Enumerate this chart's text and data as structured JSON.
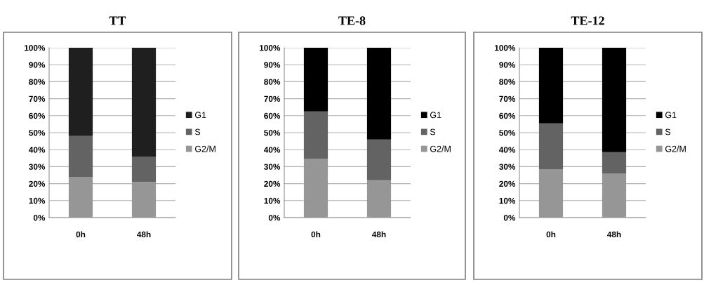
{
  "chart_data": [
    {
      "type": "bar",
      "title": "TT",
      "stacked": true,
      "categories": [
        "0h",
        "48h"
      ],
      "legend": "right",
      "grid": "y",
      "ylim": [
        0,
        100
      ],
      "yticks": [
        {
          "value": 0,
          "label": "0%"
        },
        {
          "value": 10,
          "label": "10%"
        },
        {
          "value": 20,
          "label": "20%"
        },
        {
          "value": 30,
          "label": "30%"
        },
        {
          "value": 40,
          "label": "40%"
        },
        {
          "value": 50,
          "label": "50%"
        },
        {
          "value": 60,
          "label": "60%"
        },
        {
          "value": 70,
          "label": "70%"
        },
        {
          "value": 80,
          "label": "80%"
        },
        {
          "value": 90,
          "label": "90%"
        },
        {
          "value": 100,
          "label": "100%"
        }
      ],
      "series": [
        {
          "name": "G2/M",
          "color": "#969696",
          "values": [
            24,
            21
          ]
        },
        {
          "name": "S",
          "color": "#636363",
          "values": [
            24,
            15
          ]
        },
        {
          "name": "G1",
          "color": "#1f1f1f",
          "values": [
            52,
            64
          ]
        }
      ]
    },
    {
      "type": "bar",
      "title": "TE-8",
      "stacked": true,
      "categories": [
        "0h",
        "48h"
      ],
      "legend": "right",
      "grid": "y",
      "ylim": [
        0,
        100
      ],
      "yticks": [
        {
          "value": 0,
          "label": "0%"
        },
        {
          "value": 10,
          "label": "10%"
        },
        {
          "value": 20,
          "label": "20%"
        },
        {
          "value": 30,
          "label": "30%"
        },
        {
          "value": 40,
          "label": "40%"
        },
        {
          "value": 50,
          "label": "50%"
        },
        {
          "value": 60,
          "label": "60%"
        },
        {
          "value": 70,
          "label": "70%"
        },
        {
          "value": 80,
          "label": "80%"
        },
        {
          "value": 90,
          "label": "90%"
        },
        {
          "value": 100,
          "label": "100%"
        }
      ],
      "series": [
        {
          "name": "G2/M",
          "color": "#969696",
          "values": [
            34.5,
            22
          ]
        },
        {
          "name": "S",
          "color": "#636363",
          "values": [
            28,
            24
          ]
        },
        {
          "name": "G1",
          "color": "#000000",
          "values": [
            37.5,
            54
          ]
        }
      ]
    },
    {
      "type": "bar",
      "title": "TE-12",
      "stacked": true,
      "categories": [
        "0h",
        "48h"
      ],
      "legend": "right",
      "grid": "y",
      "ylim": [
        0,
        100
      ],
      "yticks": [
        {
          "value": 0,
          "label": "0%"
        },
        {
          "value": 10,
          "label": "10%"
        },
        {
          "value": 20,
          "label": "20%"
        },
        {
          "value": 30,
          "label": "30%"
        },
        {
          "value": 40,
          "label": "40%"
        },
        {
          "value": 50,
          "label": "50%"
        },
        {
          "value": 60,
          "label": "60%"
        },
        {
          "value": 70,
          "label": "70%"
        },
        {
          "value": 80,
          "label": "80%"
        },
        {
          "value": 90,
          "label": "90%"
        },
        {
          "value": 100,
          "label": "100%"
        }
      ],
      "series": [
        {
          "name": "G2/M",
          "color": "#969696",
          "values": [
            28.5,
            26
          ]
        },
        {
          "name": "S",
          "color": "#636363",
          "values": [
            27,
            12.5
          ]
        },
        {
          "name": "G1",
          "color": "#000000",
          "values": [
            44.5,
            61.5
          ]
        }
      ]
    }
  ]
}
